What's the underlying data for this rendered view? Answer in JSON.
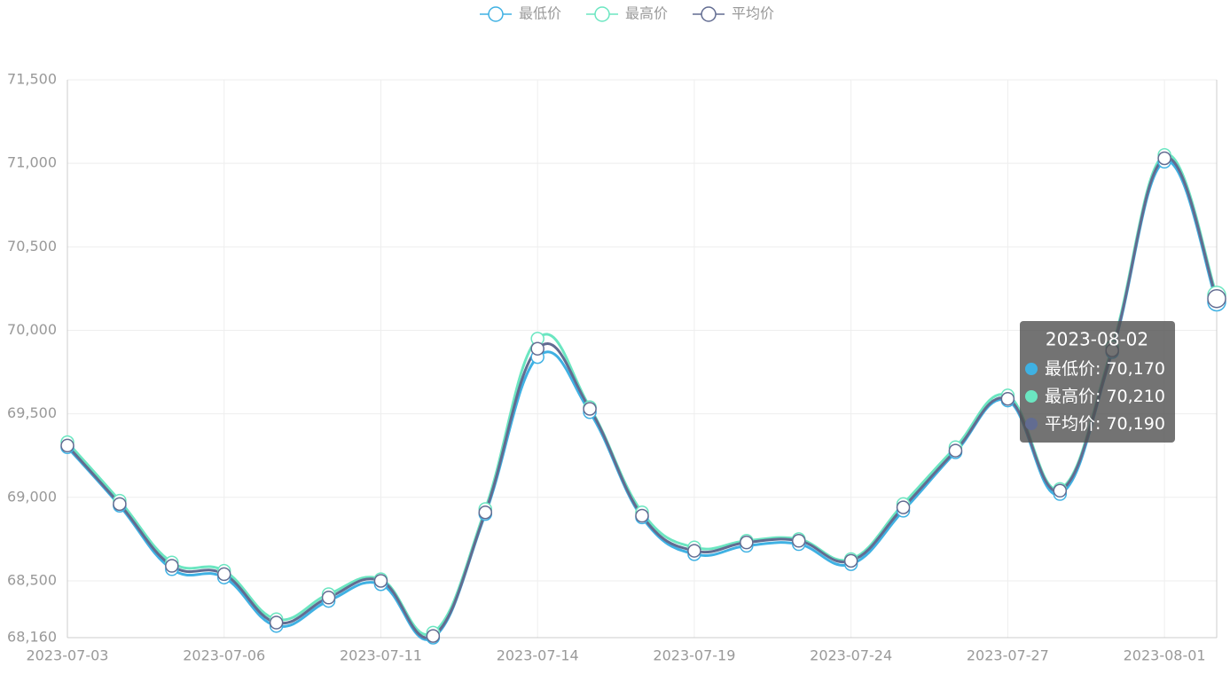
{
  "chart_data": {
    "type": "line",
    "smooth": true,
    "categories": [
      "2023-07-03",
      null,
      null,
      "2023-07-06",
      null,
      null,
      "2023-07-11",
      null,
      null,
      "2023-07-14",
      null,
      null,
      "2023-07-19",
      null,
      null,
      "2023-07-24",
      null,
      null,
      "2023-07-27",
      null,
      null,
      "2023-08-01",
      "2023-08-02"
    ],
    "label_interval": 3,
    "series": [
      {
        "name": "最低价",
        "color": "#3fb1e3",
        "values": [
          69300,
          68950,
          68570,
          68520,
          68230,
          68380,
          68480,
          68160,
          68900,
          69840,
          69510,
          68880,
          68660,
          68710,
          68720,
          68600,
          68920,
          69270,
          69580,
          69020,
          69870,
          71010,
          70170
        ],
        "value_labels": {
          "22": "70,170"
        }
      },
      {
        "name": "最高价",
        "color": "#6be6c1",
        "values": [
          69330,
          68980,
          68610,
          68560,
          68270,
          68420,
          68510,
          68190,
          68930,
          69950,
          69540,
          68910,
          68700,
          68740,
          68750,
          68630,
          68960,
          69300,
          69610,
          69050,
          69900,
          71050,
          70210
        ],
        "value_labels": {
          "22": "70,210"
        }
      },
      {
        "name": "平均价",
        "color": "#626c91",
        "values": [
          69310,
          68960,
          68590,
          68540,
          68250,
          68400,
          68500,
          68170,
          68910,
          69890,
          69530,
          68890,
          68680,
          68730,
          68740,
          68620,
          68940,
          69280,
          69590,
          69040,
          69880,
          71030,
          70190
        ],
        "value_labels": {
          "22": "70,190"
        }
      }
    ],
    "ylim": [
      68160,
      71500
    ],
    "yticks": [
      {
        "value": 68160,
        "label": "68,160"
      },
      {
        "value": 68500,
        "label": "68,500"
      },
      {
        "value": 69000,
        "label": "69,000"
      },
      {
        "value": 69500,
        "label": "69,500"
      },
      {
        "value": 70000,
        "label": "70,000"
      },
      {
        "value": 70500,
        "label": "70,500"
      },
      {
        "value": 71000,
        "label": "71,000"
      },
      {
        "value": 71500,
        "label": "71,500"
      }
    ],
    "grid": true,
    "legend": "top",
    "tooltip": {
      "index": 22,
      "separator": ": "
    }
  }
}
